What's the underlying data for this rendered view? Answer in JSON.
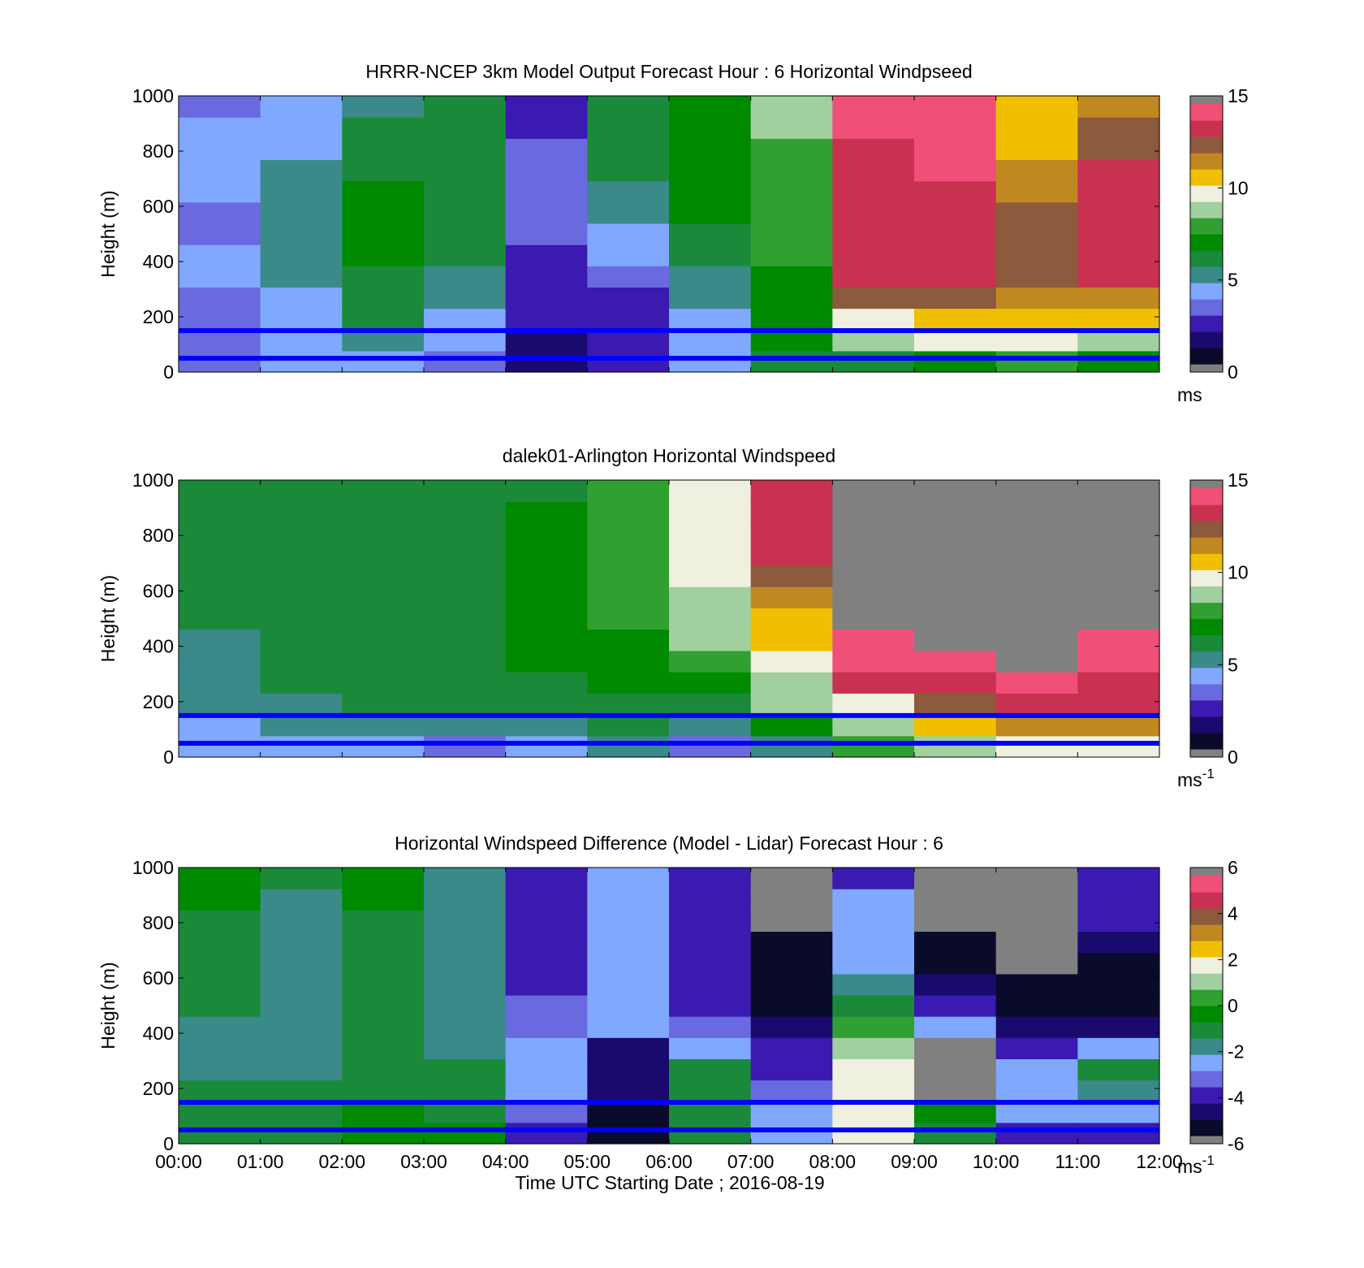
{
  "figure": {
    "xlabel": "Time UTC  Starting Date ; 2016-08-19",
    "x_ticks": [
      "00:00",
      "01:00",
      "02:00",
      "03:00",
      "04:00",
      "05:00",
      "06:00",
      "07:00",
      "08:00",
      "09:00",
      "10:00",
      "11:00",
      "12:00"
    ]
  },
  "colormaps": {
    "speed": [
      "#0a0a2a",
      "#1a0a6e",
      "#3a1ab0",
      "#6a6ae0",
      "#80a8ff",
      "#3a8a8a",
      "#1a8a3a",
      "#008a00",
      "#30a030",
      "#a0d0a0",
      "#f0f0e0",
      "#f0c000",
      "#c08820",
      "#8c5a3c",
      "#c83250",
      "#f05078"
    ],
    "diff": [
      "#0a0a2a",
      "#1a0a6e",
      "#3a1ab0",
      "#6a6ae0",
      "#80a8ff",
      "#3a8a8a",
      "#1a8a3a",
      "#008a00",
      "#30a030",
      "#a0d0a0",
      "#f0f0e0",
      "#f0c000",
      "#c08820",
      "#8c5a3c",
      "#c83250",
      "#f05078"
    ],
    "missing": "#808080",
    "line_color": "#0000ff"
  },
  "chart_data": [
    {
      "type": "heatmap",
      "title": "HRRR-NCEP 3km Model Output   Forecast Hour : 6 Horizontal Windpseed",
      "ylabel": "Height (m)",
      "xlim": [
        "00:00",
        "12:00"
      ],
      "ylim": [
        0,
        1000
      ],
      "y_ticks": [
        "0",
        "200",
        "400",
        "600",
        "800",
        "1000"
      ],
      "colorbar": {
        "min": 0,
        "max": 15,
        "ticks": [
          "0",
          "5",
          "10",
          "15"
        ],
        "unit": "ms"
      },
      "reference_heights_m": [
        150,
        50
      ],
      "columns": [
        {
          "time": "00:00",
          "speeds": [
            3.0,
            3.5,
            3.2,
            3.5,
            3.8,
            3.8,
            3.5,
            3.6,
            3.8,
            3.8,
            4.0,
            4.0,
            3.0
          ]
        },
        {
          "time": "01:00",
          "speeds": [
            4.0,
            4.2,
            4.5,
            4.5,
            4.8,
            4.8,
            5.0,
            5.2,
            5.0,
            4.8,
            4.5,
            4.2,
            3.8
          ]
        },
        {
          "time": "02:00",
          "speeds": [
            4.5,
            5.0,
            6.5,
            6.5,
            6.5,
            7.0,
            7.0,
            7.0,
            6.8,
            6.5,
            6.0,
            5.8,
            5.0
          ]
        },
        {
          "time": "03:00",
          "speeds": [
            3.5,
            4.0,
            4.5,
            5.0,
            5.5,
            6.0,
            6.2,
            6.0,
            6.0,
            6.0,
            6.0,
            6.0,
            6.0
          ]
        },
        {
          "time": "04:00",
          "speeds": [
            1.0,
            1.5,
            2.0,
            2.2,
            2.5,
            2.8,
            3.0,
            3.0,
            3.0,
            3.2,
            3.0,
            2.8,
            2.5
          ]
        },
        {
          "time": "05:00",
          "speeds": [
            2.0,
            2.2,
            2.0,
            2.5,
            3.5,
            4.0,
            4.5,
            5.0,
            5.5,
            6.0,
            6.0,
            6.2,
            6.0
          ]
        },
        {
          "time": "06:00",
          "speeds": [
            3.8,
            4.0,
            4.5,
            5.0,
            5.5,
            6.0,
            6.5,
            7.0,
            7.0,
            7.0,
            7.0,
            7.0,
            7.0
          ]
        },
        {
          "time": "07:00",
          "speeds": [
            6.5,
            6.8,
            7.0,
            7.0,
            7.2,
            7.5,
            7.5,
            7.5,
            7.8,
            7.8,
            8.0,
            8.5,
            8.5
          ]
        },
        {
          "time": "08:00",
          "speeds": [
            6.5,
            9.0,
            10.0,
            12.5,
            13.5,
            14.0,
            14.0,
            14.0,
            14.0,
            14.0,
            14.0,
            14.5,
            14.5
          ]
        },
        {
          "time": "09:00",
          "speeds": [
            6.8,
            9.5,
            10.5,
            12.5,
            13.5,
            14.0,
            14.0,
            14.0,
            14.0,
            14.5,
            14.5,
            14.8,
            14.5
          ]
        },
        {
          "time": "10:00",
          "speeds": [
            8.0,
            9.5,
            10.5,
            11.5,
            12.5,
            12.5,
            13.0,
            12.5,
            12.0,
            11.5,
            11.0,
            11.0,
            11.0
          ]
        },
        {
          "time": "11:00",
          "speeds": [
            7.0,
            9.0,
            10.5,
            12.0,
            13.5,
            14.0,
            14.0,
            14.0,
            14.0,
            13.5,
            13.0,
            12.5,
            12.0
          ]
        }
      ]
    },
    {
      "type": "heatmap",
      "title": "dalek01-Arlington  Horizontal Windspeed",
      "ylabel": "Height (m)",
      "xlim": [
        "00:00",
        "12:00"
      ],
      "ylim": [
        0,
        1000
      ],
      "y_ticks": [
        "0",
        "200",
        "400",
        "600",
        "800",
        "1000"
      ],
      "colorbar": {
        "min": 0,
        "max": 15,
        "ticks": [
          "0",
          "5",
          "10",
          "15"
        ],
        "unit": "ms",
        "unit_exponent": "-1"
      },
      "reference_heights_m": [
        150,
        50
      ],
      "columns": [
        {
          "time": "00:00",
          "speeds": [
            4.0,
            4.5,
            5.0,
            5.2,
            5.5,
            5.5,
            5.8,
            5.8,
            6.0,
            6.0,
            6.0,
            6.0,
            6.0
          ]
        },
        {
          "time": "01:00",
          "speeds": [
            4.5,
            5.0,
            5.5,
            5.8,
            6.0,
            6.0,
            6.0,
            6.2,
            6.2,
            6.2,
            6.0,
            6.0,
            6.0
          ]
        },
        {
          "time": "02:00",
          "speeds": [
            4.0,
            5.0,
            5.8,
            6.0,
            6.2,
            6.2,
            6.2,
            6.2,
            6.2,
            6.2,
            6.2,
            6.2,
            6.2
          ]
        },
        {
          "time": "03:00",
          "speeds": [
            3.5,
            5.0,
            6.0,
            6.0,
            6.0,
            6.2,
            6.2,
            6.2,
            6.2,
            6.0,
            6.0,
            6.0,
            6.0
          ]
        },
        {
          "time": "04:00",
          "speeds": [
            4.0,
            5.5,
            6.0,
            6.5,
            6.8,
            7.0,
            7.0,
            7.2,
            7.0,
            7.0,
            6.8,
            6.8,
            6.5
          ]
        },
        {
          "time": "05:00",
          "speeds": [
            5.0,
            6.0,
            6.5,
            7.0,
            7.0,
            7.2,
            7.5,
            7.5,
            7.5,
            7.5,
            7.8,
            7.8,
            7.8
          ]
        },
        {
          "time": "06:00",
          "speeds": [
            3.0,
            5.0,
            6.0,
            7.0,
            8.0,
            8.5,
            9.0,
            9.0,
            9.5,
            9.5,
            9.5,
            9.5,
            9.5
          ]
        },
        {
          "time": "07:00",
          "speeds": [
            5.0,
            7.0,
            8.5,
            9.0,
            10.0,
            10.5,
            11.0,
            12.0,
            13.0,
            13.5,
            14.0,
            14.0,
            14.0
          ]
        },
        {
          "time": "08:00",
          "speeds": [
            8.0,
            9.0,
            10.0,
            14.0,
            14.5,
            14.5,
            null,
            null,
            null,
            null,
            null,
            null,
            null
          ]
        },
        {
          "time": "09:00",
          "speeds": [
            9.0,
            10.5,
            12.5,
            14.0,
            14.5,
            null,
            null,
            null,
            null,
            null,
            null,
            null,
            null
          ]
        },
        {
          "time": "10:00",
          "speeds": [
            10.0,
            12.0,
            13.5,
            14.5,
            null,
            null,
            null,
            null,
            null,
            null,
            null,
            null,
            null
          ]
        },
        {
          "time": "11:00",
          "speeds": [
            10.0,
            12.0,
            13.5,
            14.0,
            14.5,
            14.5,
            null,
            null,
            null,
            null,
            null,
            null,
            null
          ]
        }
      ]
    },
    {
      "type": "heatmap",
      "title": "Horizontal Windspeed Difference (Model - Lidar) Forecast Hour : 6",
      "ylabel": "Height (m)",
      "xlabel": "Time UTC  Starting Date ; 2016-08-19",
      "xlim": [
        "00:00",
        "12:00"
      ],
      "ylim": [
        0,
        1000
      ],
      "y_ticks": [
        "0",
        "200",
        "400",
        "600",
        "800",
        "1000"
      ],
      "colorbar": {
        "min": -6,
        "max": 6,
        "ticks": [
          "-6",
          "-4",
          "-2",
          "0",
          "2",
          "4",
          "6"
        ],
        "unit": "ms",
        "unit_exponent": "-1"
      },
      "reference_heights_m": [
        150,
        50
      ],
      "columns": [
        {
          "time": "00:00",
          "diff": [
            -1.0,
            -1.2,
            -1.5,
            -1.8,
            -2.0,
            -1.8,
            -1.5,
            -1.2,
            -1.0,
            -0.8,
            -0.8,
            -0.6,
            -0.5
          ]
        },
        {
          "time": "01:00",
          "diff": [
            -1.0,
            -1.2,
            -1.5,
            -1.8,
            -1.8,
            -1.8,
            -1.8,
            -1.8,
            -1.8,
            -1.8,
            -1.8,
            -1.8,
            -1.5
          ]
        },
        {
          "time": "02:00",
          "diff": [
            -0.5,
            -0.6,
            -0.8,
            -1.0,
            -1.2,
            -1.5,
            -1.5,
            -1.5,
            -1.2,
            -1.0,
            -0.8,
            -0.6,
            -0.5
          ]
        },
        {
          "time": "03:00",
          "diff": [
            -0.5,
            -0.8,
            -1.0,
            -1.5,
            -1.8,
            -1.8,
            -1.8,
            -1.8,
            -1.8,
            -2.0,
            -2.2,
            -2.0,
            -1.8
          ]
        },
        {
          "time": "04:00",
          "diff": [
            -4.0,
            -3.5,
            -3.0,
            -2.8,
            -3.0,
            -3.2,
            -3.5,
            -3.8,
            -4.0,
            -4.0,
            -4.2,
            -4.0,
            -3.8
          ]
        },
        {
          "time": "05:00",
          "diff": [
            -5.5,
            -5.5,
            -5.0,
            -5.0,
            -5.2,
            -3.0,
            -2.5,
            -2.5,
            -2.5,
            -2.8,
            -3.0,
            -3.0,
            -3.0
          ]
        },
        {
          "time": "06:00",
          "diff": [
            -1.0,
            -1.0,
            -1.5,
            -1.5,
            -2.5,
            -3.5,
            -4.0,
            -4.0,
            -4.0,
            -4.0,
            -4.0,
            -4.2,
            -4.2
          ]
        },
        {
          "time": "07:00",
          "diff": [
            -2.5,
            -3.0,
            -3.5,
            -4.0,
            -4.5,
            -5.0,
            -5.5,
            -5.5,
            -5.8,
            -5.8,
            null,
            null,
            null
          ]
        },
        {
          "time": "08:00",
          "diff": [
            2.0,
            1.5,
            1.5,
            1.5,
            1.0,
            0.5,
            -1.0,
            -2.0,
            -2.5,
            -3.0,
            -3.0,
            -3.0,
            -4.0
          ]
        },
        {
          "time": "09:00",
          "diff": [
            -1.0,
            -0.5,
            null,
            null,
            null,
            -2.5,
            -4.0,
            -5.0,
            -5.5,
            -5.8,
            null,
            null,
            null
          ]
        },
        {
          "time": "10:00",
          "diff": [
            -4.5,
            -3.0,
            -2.5,
            -2.5,
            -4.0,
            -5.0,
            -5.5,
            -5.8,
            null,
            null,
            null,
            null,
            null
          ]
        },
        {
          "time": "11:00",
          "diff": [
            -4.5,
            -3.0,
            -2.0,
            -1.5,
            -3.0,
            -5.0,
            -5.5,
            -5.5,
            -5.5,
            -5.0,
            -4.5,
            -4.5,
            -4.5
          ]
        }
      ]
    }
  ]
}
